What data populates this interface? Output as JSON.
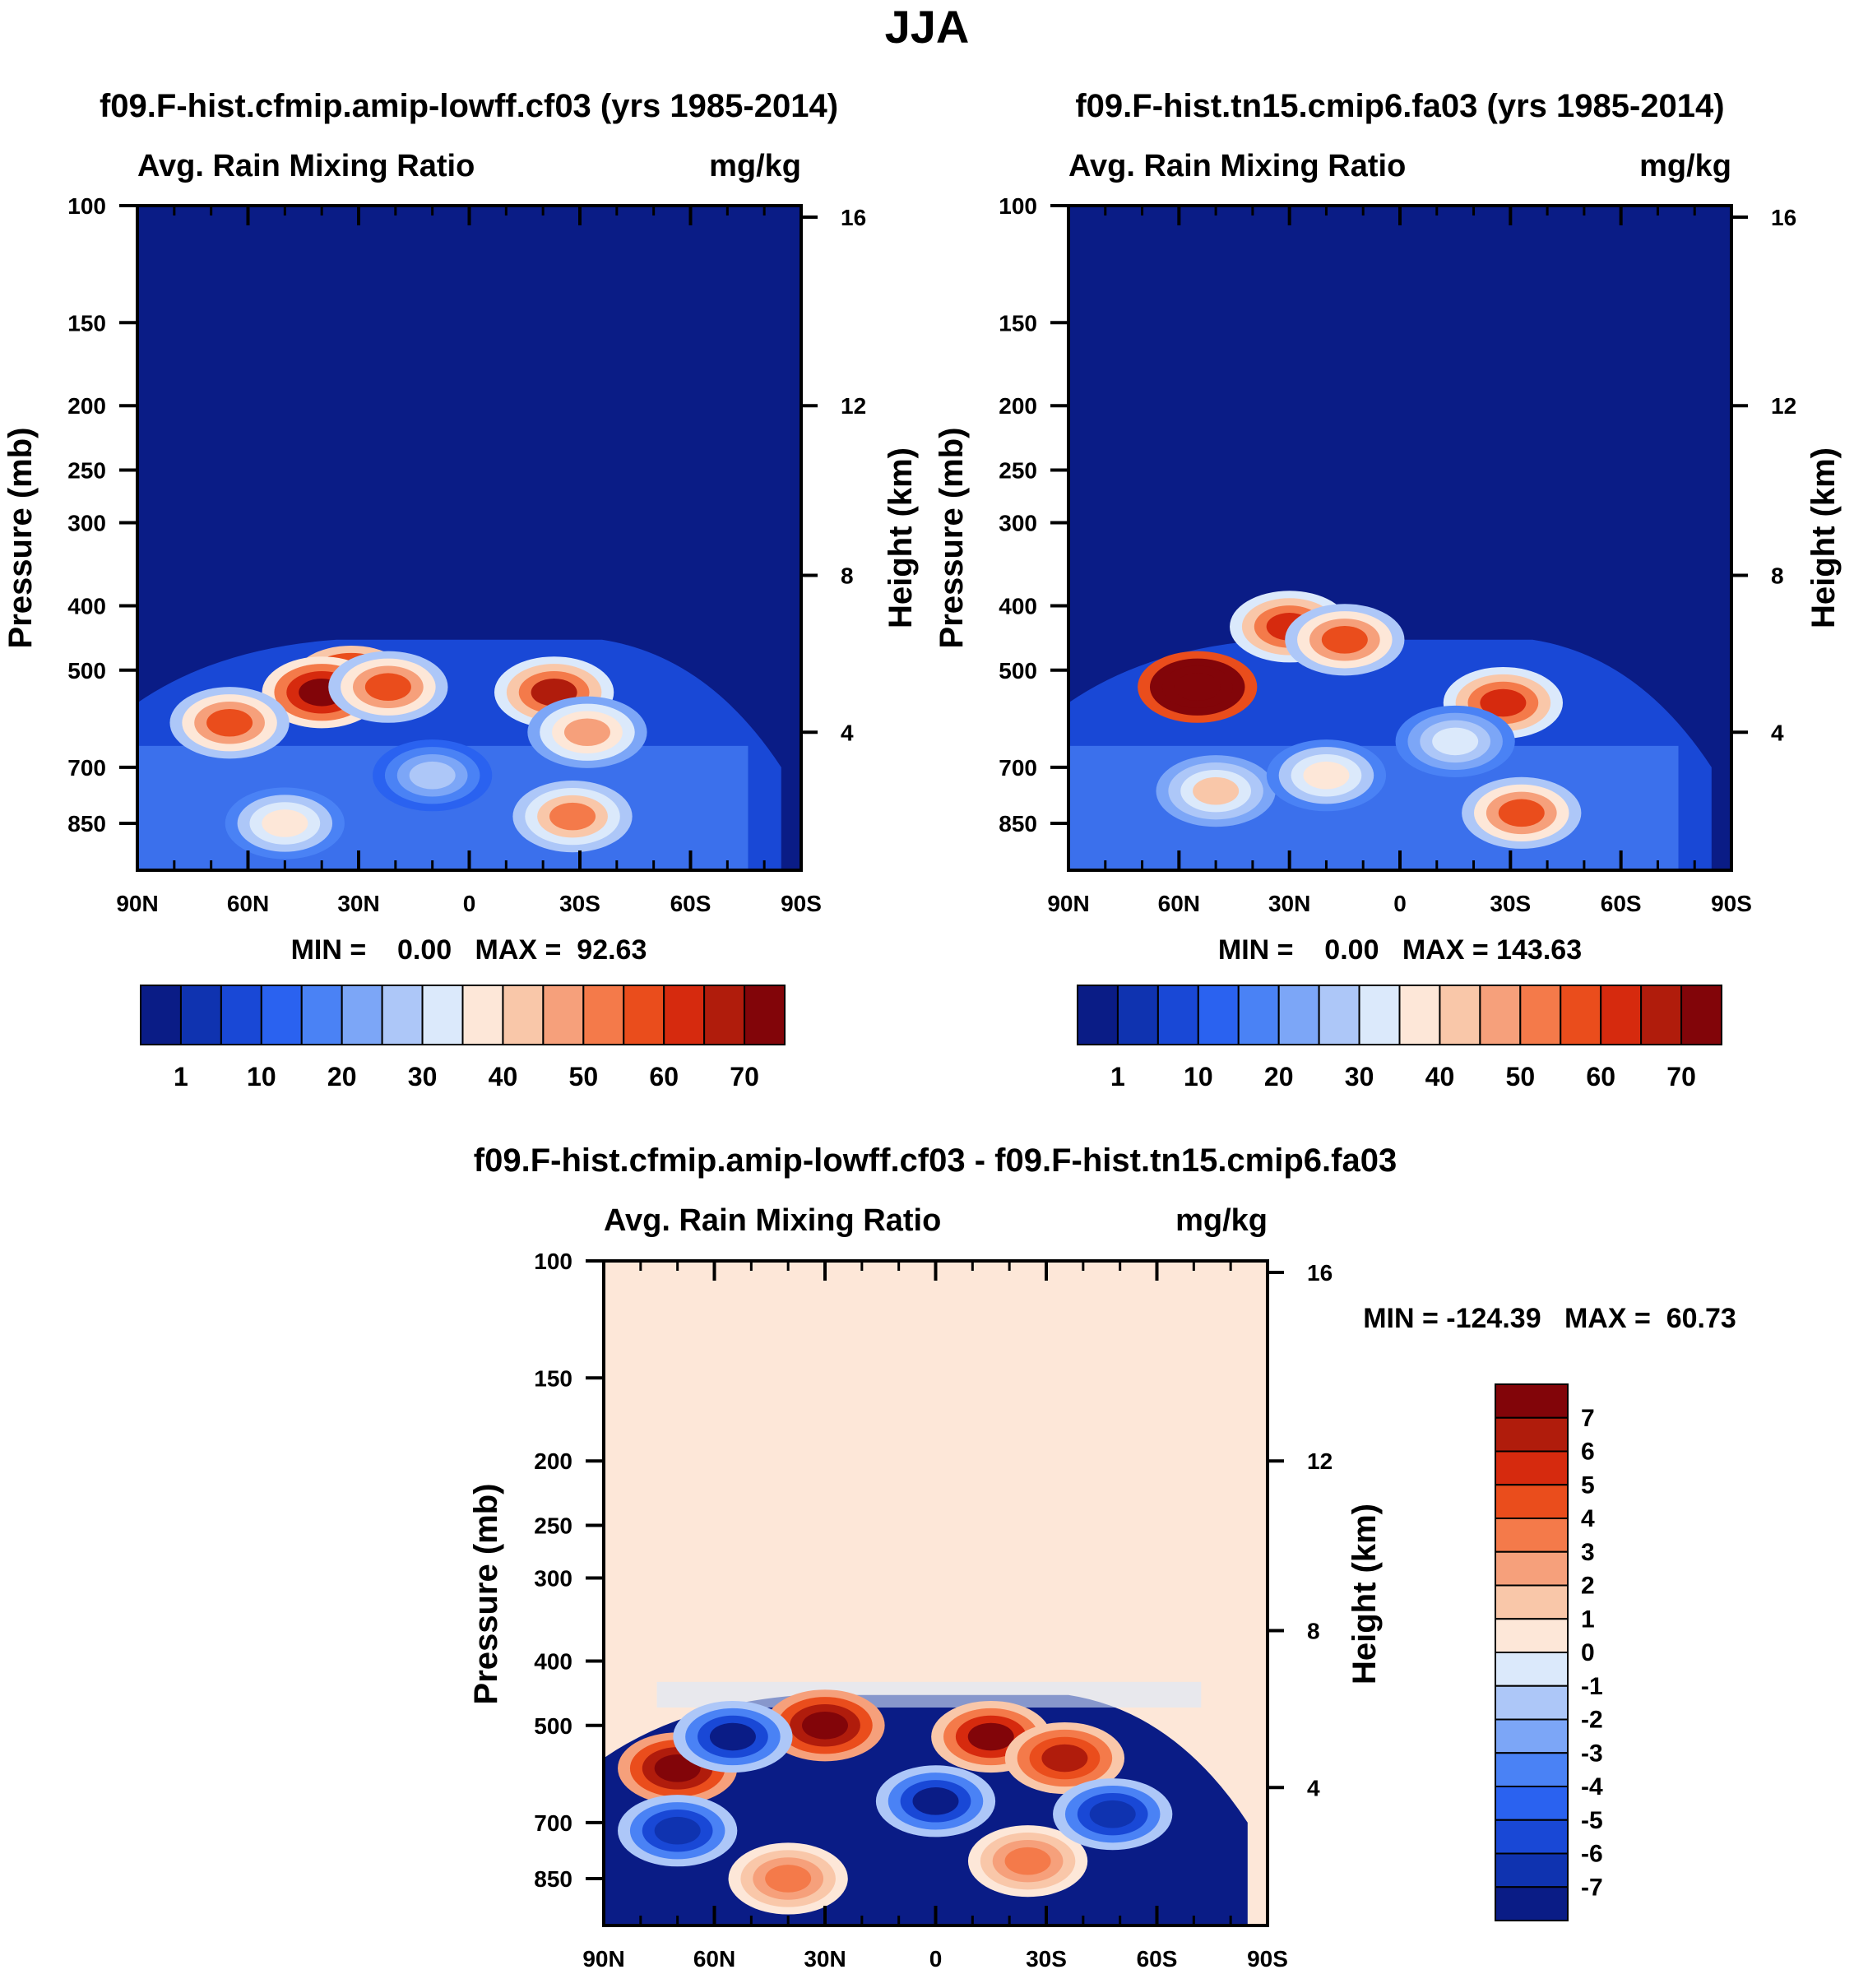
{
  "season_title": "JJA",
  "colors": {
    "seq": [
      "#0a1c86",
      "#0f33b0",
      "#1948d6",
      "#2a62f0",
      "#4a82f5",
      "#7ca6f7",
      "#adc7f8",
      "#dbe9fb",
      "#fde7d8",
      "#f9c7a9",
      "#f6a07b",
      "#f47a4a",
      "#ea4d1c",
      "#d62a0e",
      "#b01c0c",
      "#820509"
    ],
    "diff": [
      "#0a1c86",
      "#0f33b0",
      "#1948d6",
      "#2a62f0",
      "#4a82f5",
      "#7ca6f7",
      "#adc7f8",
      "#dbe9fb",
      "#fde7d8",
      "#f9c7a9",
      "#f6a07b",
      "#f47a4a",
      "#ea4d1c",
      "#d62a0e",
      "#b01c0c",
      "#820509"
    ]
  },
  "chart_data": [
    {
      "type": "contour",
      "name": "left",
      "title": "f09.F-hist.cfmip.amip-lowff.cf03 (yrs 1985-2014)",
      "left_label": "Avg. Rain Mixing Ratio",
      "units": "mg/kg",
      "ylabel": "Pressure (mb)",
      "ylabel_right": "Height (km)",
      "x_ticks": [
        "90N",
        "60N",
        "30N",
        "0",
        "30S",
        "60S",
        "90S"
      ],
      "y_ticks": [
        "100",
        "150",
        "200",
        "250",
        "300",
        "400",
        "500",
        "700",
        "850"
      ],
      "height_ticks": [
        "16",
        "12",
        "8",
        "4"
      ],
      "ylim": [
        100,
        1000
      ],
      "min_max": "MIN =    0.00   MAX =  92.63",
      "colorbar_labels": [
        "1",
        "10",
        "20",
        "30",
        "40",
        "50",
        "60",
        "70"
      ],
      "blobs": [
        {
          "lat": 32,
          "p": 520,
          "value": 85
        },
        {
          "lat": 40,
          "p": 540,
          "value": 75
        },
        {
          "lat": 22,
          "p": 530,
          "value": 55
        },
        {
          "lat": 65,
          "p": 600,
          "value": 55
        },
        {
          "lat": -23,
          "p": 540,
          "value": 65
        },
        {
          "lat": -32,
          "p": 620,
          "value": 45
        },
        {
          "lat": -28,
          "p": 830,
          "value": 50
        },
        {
          "lat": 50,
          "p": 850,
          "value": 38
        },
        {
          "lat": 10,
          "p": 720,
          "value": 25
        }
      ]
    },
    {
      "type": "contour",
      "name": "right",
      "title": "f09.F-hist.tn15.cmip6.fa03 (yrs 1985-2014)",
      "left_label": "Avg. Rain Mixing Ratio",
      "units": "mg/kg",
      "ylabel": "Pressure (mb)",
      "ylabel_right": "Height (km)",
      "x_ticks": [
        "90N",
        "60N",
        "30N",
        "0",
        "30S",
        "60S",
        "90S"
      ],
      "y_ticks": [
        "100",
        "150",
        "200",
        "250",
        "300",
        "400",
        "500",
        "700",
        "850"
      ],
      "height_ticks": [
        "16",
        "12",
        "8",
        "4"
      ],
      "ylim": [
        100,
        1000
      ],
      "min_max": "MIN =    0.00   MAX = 143.63",
      "colorbar_labels": [
        "1",
        "10",
        "20",
        "30",
        "40",
        "50",
        "60",
        "70"
      ],
      "blobs": [
        {
          "lat": 55,
          "p": 530,
          "value": 110
        },
        {
          "lat": 30,
          "p": 430,
          "value": 60
        },
        {
          "lat": 15,
          "p": 450,
          "value": 55
        },
        {
          "lat": -28,
          "p": 560,
          "value": 60
        },
        {
          "lat": -33,
          "p": 820,
          "value": 55
        },
        {
          "lat": 50,
          "p": 760,
          "value": 40
        },
        {
          "lat": 20,
          "p": 720,
          "value": 38
        },
        {
          "lat": -15,
          "p": 640,
          "value": 30
        }
      ]
    },
    {
      "type": "contour",
      "name": "diff",
      "title": "f09.F-hist.cfmip.amip-lowff.cf03 - f09.F-hist.tn15.cmip6.fa03",
      "left_label": "Avg. Rain Mixing Ratio",
      "units": "mg/kg",
      "ylabel": "Pressure (mb)",
      "ylabel_right": "Height (km)",
      "x_ticks": [
        "90N",
        "60N",
        "30N",
        "0",
        "30S",
        "60S",
        "90S"
      ],
      "y_ticks": [
        "100",
        "150",
        "200",
        "250",
        "300",
        "400",
        "500",
        "700",
        "850"
      ],
      "height_ticks": [
        "16",
        "12",
        "8",
        "4"
      ],
      "ylim": [
        100,
        1000
      ],
      "min_max": "MIN = -124.39   MAX =  60.73",
      "colorbar_labels": [
        "7",
        "6",
        "5",
        "4",
        "3",
        "2",
        "1",
        "0",
        "-1",
        "-2",
        "-3",
        "-4",
        "-5",
        "-6",
        "-7"
      ],
      "blobs": [
        {
          "lat": 30,
          "p": 500,
          "value": 8
        },
        {
          "lat": 70,
          "p": 580,
          "value": 8
        },
        {
          "lat": -15,
          "p": 520,
          "value": 7
        },
        {
          "lat": -35,
          "p": 560,
          "value": 6
        },
        {
          "lat": 40,
          "p": 850,
          "value": 3
        },
        {
          "lat": -25,
          "p": 800,
          "value": 3
        },
        {
          "lat": 55,
          "p": 520,
          "value": -8
        },
        {
          "lat": 0,
          "p": 650,
          "value": -8
        },
        {
          "lat": 70,
          "p": 720,
          "value": -7
        },
        {
          "lat": -48,
          "p": 680,
          "value": -7
        }
      ]
    }
  ]
}
